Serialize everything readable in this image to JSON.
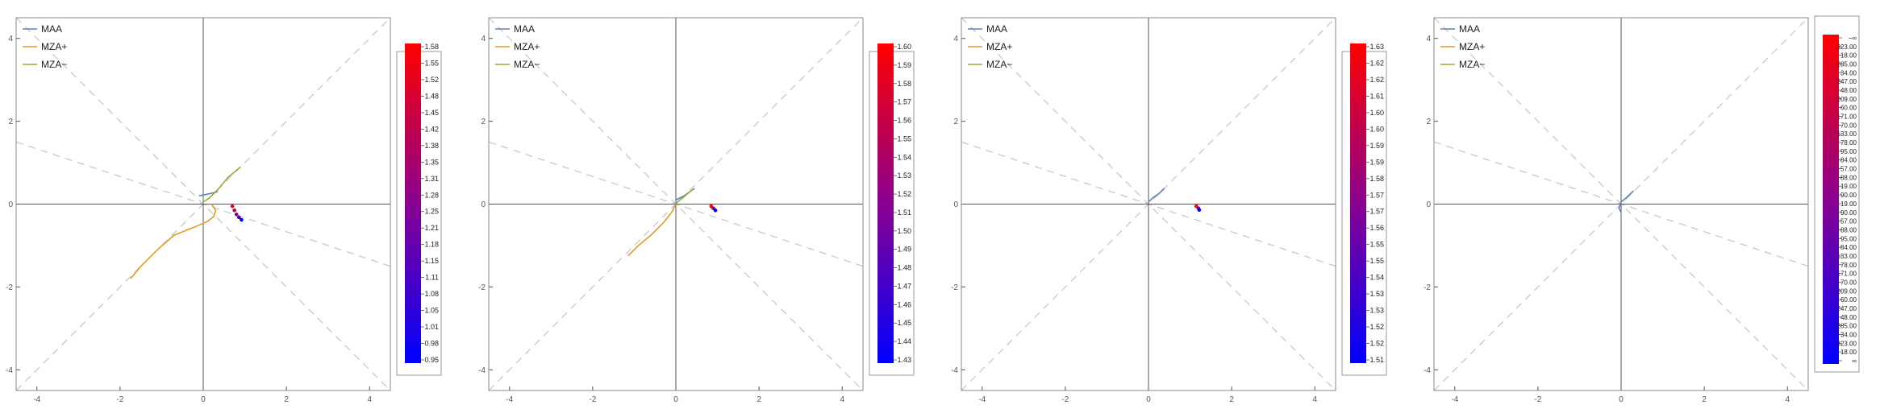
{
  "colors": {
    "maa": "#5e81b5",
    "mza_plus": "#e19c24",
    "mza_minus": "#8fb032",
    "guide": "#c8c8c8",
    "axis": "#555555",
    "frame": "#888888",
    "gradient_top": "#ff0000",
    "gradient_mid": "#8a0090",
    "gradient_bottom": "#0000ff"
  },
  "legend": [
    "MAA",
    "MZA+",
    "MZA−"
  ],
  "chart_data": [
    {
      "type": "line",
      "panel": 1,
      "xlim": [
        -4.5,
        4.5
      ],
      "ylim": [
        -4.5,
        4.5
      ],
      "x_ticks": [
        "-4",
        "-2",
        "0",
        "2",
        "4"
      ],
      "y_ticks": [
        "4",
        "2",
        "0",
        "-2",
        "-4"
      ],
      "grid": false,
      "legend_placement": "top-left",
      "guide_lines": [
        {
          "slope": 1
        },
        {
          "slope": -1
        },
        {
          "slope": -0.3333
        }
      ],
      "series": [
        {
          "name": "MAA",
          "color_key": "maa",
          "points": [
            [
              -0.1,
              0.2
            ],
            [
              0.15,
              0.25
            ],
            [
              0.35,
              0.3
            ]
          ]
        },
        {
          "name": "MZA+",
          "color_key": "mza_plus",
          "points": [
            [
              0.2,
              0.0
            ],
            [
              0.3,
              -0.15
            ],
            [
              0.25,
              -0.3
            ],
            [
              0.1,
              -0.42
            ],
            [
              -0.2,
              -0.55
            ],
            [
              -0.7,
              -0.75
            ],
            [
              -1.1,
              -1.1
            ],
            [
              -1.5,
              -1.5
            ],
            [
              -1.75,
              -1.8
            ]
          ]
        },
        {
          "name": "MZA−",
          "color_key": "mza_minus",
          "points": [
            [
              0.0,
              0.05
            ],
            [
              0.15,
              0.15
            ],
            [
              0.35,
              0.35
            ],
            [
              0.6,
              0.65
            ],
            [
              0.9,
              0.9
            ]
          ]
        }
      ],
      "marker_trail": [
        [
          0.7,
          -0.05
        ],
        [
          0.75,
          -0.15
        ],
        [
          0.8,
          -0.25
        ],
        [
          0.86,
          -0.32
        ],
        [
          0.92,
          -0.38
        ]
      ],
      "colorbar_labels": [
        "1.58",
        "1.55",
        "1.52",
        "1.48",
        "1.45",
        "1.42",
        "1.38",
        "1.35",
        "1.31",
        "1.28",
        "1.25",
        "1.21",
        "1.18",
        "1.15",
        "1.11",
        "1.08",
        "1.05",
        "1.01",
        "0.98",
        "0.95"
      ]
    },
    {
      "type": "line",
      "panel": 2,
      "xlim": [
        -4.5,
        4.5
      ],
      "ylim": [
        -4.5,
        4.5
      ],
      "x_ticks": [
        "-4",
        "-2",
        "0",
        "2",
        "4"
      ],
      "y_ticks": [
        "4",
        "2",
        "0",
        "-2",
        "-4"
      ],
      "grid": false,
      "legend_placement": "top-left",
      "guide_lines": [
        {
          "slope": 1
        },
        {
          "slope": -1
        },
        {
          "slope": -0.3333
        }
      ],
      "series": [
        {
          "name": "MAA",
          "color_key": "maa",
          "points": [
            [
              0.0,
              0.1
            ],
            [
              0.2,
              0.2
            ],
            [
              0.45,
              0.38
            ]
          ]
        },
        {
          "name": "MZA+",
          "color_key": "mza_plus",
          "points": [
            [
              0.0,
              0.0
            ],
            [
              -0.1,
              -0.2
            ],
            [
              -0.3,
              -0.45
            ],
            [
              -0.6,
              -0.75
            ],
            [
              -0.9,
              -1.0
            ],
            [
              -1.15,
              -1.25
            ]
          ]
        },
        {
          "name": "MZA−",
          "color_key": "mza_minus",
          "points": [
            [
              0.0,
              0.02
            ],
            [
              0.2,
              0.18
            ],
            [
              0.4,
              0.35
            ]
          ]
        }
      ],
      "marker_trail": [
        [
          0.85,
          -0.05
        ],
        [
          0.9,
          -0.1
        ],
        [
          0.95,
          -0.15
        ]
      ],
      "colorbar_labels": [
        "1.60",
        "1.59",
        "1.58",
        "1.57",
        "1.56",
        "1.55",
        "1.54",
        "1.53",
        "1.52",
        "1.51",
        "1.50",
        "1.49",
        "1.48",
        "1.47",
        "1.46",
        "1.45",
        "1.44",
        "1.43"
      ]
    },
    {
      "type": "line",
      "panel": 3,
      "xlim": [
        -4.5,
        4.5
      ],
      "ylim": [
        -4.5,
        4.5
      ],
      "x_ticks": [
        "-4",
        "-2",
        "0",
        "2",
        "4"
      ],
      "y_ticks": [
        "4",
        "2",
        "0",
        "-2",
        "-4"
      ],
      "grid": false,
      "legend_placement": "top-left",
      "guide_lines": [
        {
          "slope": 1
        },
        {
          "slope": -1
        },
        {
          "slope": -0.3333
        }
      ],
      "series": [
        {
          "name": "MAA",
          "color_key": "maa",
          "points": [
            [
              0.0,
              0.05
            ],
            [
              0.1,
              0.15
            ],
            [
              0.25,
              0.25
            ],
            [
              0.38,
              0.38
            ]
          ]
        },
        {
          "name": "MZA+",
          "color_key": "mza_plus",
          "points": []
        },
        {
          "name": "MZA−",
          "color_key": "mza_minus",
          "points": []
        }
      ],
      "marker_trail": [
        [
          1.15,
          -0.05
        ],
        [
          1.2,
          -0.1
        ],
        [
          1.22,
          -0.14
        ]
      ],
      "colorbar_labels": [
        "1.63",
        "1.62",
        "1.62",
        "1.61",
        "1.60",
        "1.60",
        "1.59",
        "1.59",
        "1.58",
        "1.57",
        "1.57",
        "1.56",
        "1.55",
        "1.55",
        "1.54",
        "1.53",
        "1.53",
        "1.52",
        "1.52",
        "1.51"
      ]
    },
    {
      "type": "line",
      "panel": 4,
      "xlim": [
        -4.5,
        4.5
      ],
      "ylim": [
        -4.5,
        4.5
      ],
      "x_ticks": [
        "-4",
        "-2",
        "0",
        "2",
        "4"
      ],
      "y_ticks": [
        "4",
        "2",
        "0",
        "-2",
        "-4"
      ],
      "grid": false,
      "legend_placement": "top-left",
      "guide_lines": [
        {
          "slope": 1
        },
        {
          "slope": -1
        },
        {
          "slope": -0.3333
        }
      ],
      "series": [
        {
          "name": "MAA",
          "color_key": "maa",
          "points": [
            [
              0.0,
              -0.2
            ],
            [
              -0.05,
              -0.1
            ],
            [
              0.0,
              0.05
            ],
            [
              0.12,
              0.15
            ],
            [
              0.3,
              0.32
            ]
          ]
        },
        {
          "name": "MZA+",
          "color_key": "mza_plus",
          "points": []
        },
        {
          "name": "MZA−",
          "color_key": "mza_minus",
          "points": []
        }
      ],
      "marker_trail": [],
      "colorbar_labels": [
        "−∞",
        "323.00",
        "18.00",
        "285.00",
        "34.00",
        "247.00",
        "48.00",
        "209.00",
        "60.00",
        "171.00",
        "70.00",
        "133.00",
        "78.00",
        "95.00",
        "84.00",
        "57.00",
        "88.00",
        "19.00",
        "90.00",
        "19.00",
        "90.00",
        "57.00",
        "88.00",
        "95.00",
        "84.00",
        "133.00",
        "78.00",
        "171.00",
        "70.00",
        "209.00",
        "60.00",
        "247.00",
        "48.00",
        "285.00",
        "34.00",
        "323.00",
        "18.00",
        "∞"
      ]
    }
  ]
}
